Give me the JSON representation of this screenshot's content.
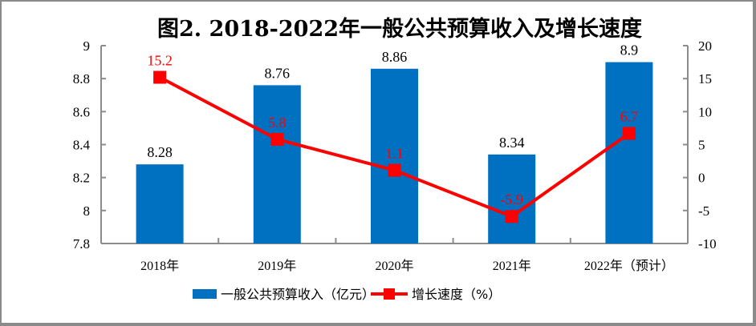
{
  "chart_data": {
    "type": "bar",
    "title": "图2. 2018-2022年一般公共预算收入及增长速度",
    "categories": [
      "2018年",
      "2019年",
      "2020年",
      "2021年",
      "2022年（预计）"
    ],
    "series": [
      {
        "name": "一般公共预算收入（亿元）",
        "type": "bar",
        "axis": "left",
        "color": "#0070c0",
        "values": [
          8.28,
          8.76,
          8.86,
          8.34,
          8.9
        ],
        "labels": [
          "8.28",
          "8.76",
          "8.86",
          "8.34",
          "8.9"
        ]
      },
      {
        "name": "增长速度（%）",
        "type": "line",
        "axis": "right",
        "color": "#ff0000",
        "marker": "square",
        "values": [
          15.2,
          5.8,
          1.1,
          -5.9,
          6.7
        ],
        "labels": [
          "15.2",
          "5.8",
          "1.1",
          "-5.9",
          "6.7"
        ]
      }
    ],
    "y_left": {
      "min": 7.8,
      "max": 9,
      "ticks": [
        "9",
        "8.8",
        "8.6",
        "8.4",
        "8.2",
        "8",
        "7.8"
      ],
      "tick_values": [
        9,
        8.8,
        8.6,
        8.4,
        8.2,
        8,
        7.8
      ]
    },
    "y_right": {
      "min": -10,
      "max": 20,
      "ticks": [
        "20",
        "15",
        "10",
        "5",
        "0",
        "-5",
        "-10"
      ],
      "tick_values": [
        20,
        15,
        10,
        5,
        0,
        -5,
        -10
      ]
    },
    "xlabel": "",
    "ylabel": "",
    "grid": false,
    "legend_position": "bottom",
    "axis_color": "#8c8c8c"
  }
}
